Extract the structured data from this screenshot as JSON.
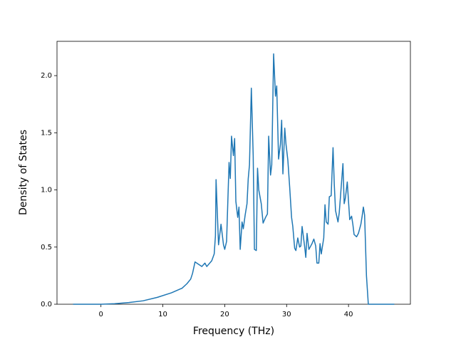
{
  "chart_data": {
    "type": "line",
    "xlabel": "Frequency (THz)",
    "ylabel": "Density of States",
    "xlim": [
      -7.1,
      50.0
    ],
    "ylim": [
      0,
      2.3
    ],
    "xticks": [
      0,
      10,
      20,
      30,
      40
    ],
    "yticks": [
      {
        "value": 0,
        "label": "0.0"
      },
      0.5,
      {
        "value": 1,
        "label": "1.0"
      },
      1.5,
      {
        "value": 2,
        "label": "2.0"
      }
    ],
    "series": [
      {
        "color": "#1f77b4",
        "x": [
          -4.5,
          0,
          2.2,
          4.5,
          6.8,
          9.1,
          11.4,
          13.1,
          13.9,
          14.5,
          14.8,
          15.2,
          16.3,
          16.8,
          17.1,
          17.9,
          18.3,
          18.5,
          18.6,
          19.0,
          19.4,
          19.8,
          20.0,
          20.3,
          20.7,
          20.9,
          21.1,
          21.4,
          21.6,
          21.8,
          22.1,
          22.3,
          22.5,
          22.8,
          23.0,
          23.3,
          23.6,
          23.8,
          24.0,
          24.3,
          24.6,
          24.8,
          25.1,
          25.3,
          25.5,
          25.9,
          26.2,
          26.6,
          26.9,
          27.1,
          27.4,
          27.6,
          27.9,
          28.2,
          28.4,
          28.7,
          29.0,
          29.2,
          29.4,
          29.7,
          29.9,
          30.2,
          30.5,
          30.8,
          31.0,
          31.3,
          31.5,
          31.8,
          32.1,
          32.3,
          32.5,
          32.9,
          33.1,
          33.3,
          33.6,
          33.9,
          34.1,
          34.4,
          34.7,
          34.9,
          35.2,
          35.4,
          35.6,
          36.0,
          36.2,
          36.4,
          36.7,
          36.9,
          37.2,
          37.5,
          37.7,
          37.9,
          38.3,
          38.5,
          38.7,
          39.1,
          39.3,
          39.5,
          39.8,
          40.0,
          40.2,
          40.5,
          40.7,
          40.9,
          41.3,
          41.6,
          42.0,
          42.2,
          42.4,
          42.6,
          42.9,
          43.2,
          47.4
        ],
        "values": [
          0,
          0,
          0.005,
          0.015,
          0.03,
          0.06,
          0.1,
          0.14,
          0.18,
          0.22,
          0.27,
          0.37,
          0.33,
          0.36,
          0.33,
          0.38,
          0.44,
          0.6,
          1.09,
          0.52,
          0.7,
          0.52,
          0.48,
          0.55,
          1.24,
          1.1,
          1.47,
          1.3,
          1.45,
          0.9,
          0.76,
          0.85,
          0.48,
          0.72,
          0.66,
          0.78,
          0.88,
          1.1,
          1.22,
          1.89,
          1.3,
          0.48,
          0.47,
          1.19,
          1.0,
          0.88,
          0.71,
          0.76,
          0.79,
          1.47,
          1.13,
          1.22,
          2.19,
          1.82,
          1.91,
          1.27,
          1.4,
          1.61,
          1.14,
          1.54,
          1.4,
          1.26,
          1.02,
          0.76,
          0.68,
          0.49,
          0.47,
          0.58,
          0.5,
          0.51,
          0.68,
          0.51,
          0.41,
          0.62,
          0.48,
          0.51,
          0.53,
          0.57,
          0.51,
          0.36,
          0.36,
          0.53,
          0.44,
          0.58,
          0.87,
          0.72,
          0.7,
          0.94,
          0.95,
          1.37,
          1.05,
          0.82,
          0.72,
          0.8,
          0.94,
          1.23,
          0.88,
          0.93,
          1.07,
          0.9,
          0.74,
          0.77,
          0.7,
          0.61,
          0.59,
          0.62,
          0.7,
          0.77,
          0.85,
          0.78,
          0.25,
          0,
          0
        ]
      }
    ]
  }
}
